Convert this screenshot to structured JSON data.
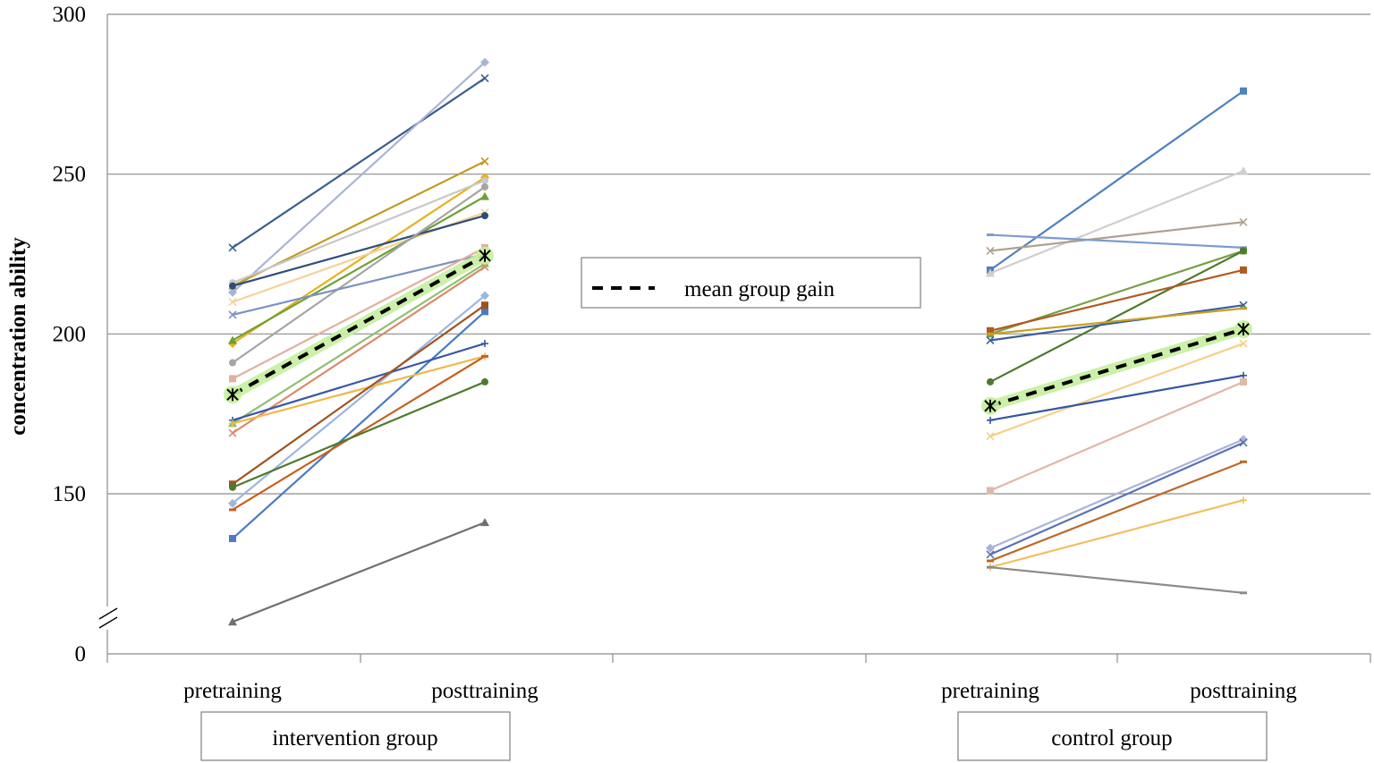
{
  "chart_data": {
    "type": "line",
    "title": "",
    "xlabel": "",
    "ylabel": "concentration ability",
    "ylim": [
      0,
      300
    ],
    "y_axis_break": {
      "below": 150,
      "shown_tick": 0,
      "note": "broken axis between 0 and ~120"
    },
    "y_ticks": [
      "0",
      "150",
      "200",
      "250",
      "300"
    ],
    "grid": true,
    "legend": {
      "position": "center-top",
      "entries": [
        "mean group gain"
      ]
    },
    "categories": [
      "pretraining",
      "posttraining",
      "pretraining",
      "posttraining"
    ],
    "groups": [
      {
        "label": "intervention group",
        "mean": {
          "name": "mean group gain",
          "pre": 181,
          "post": 224.5
        },
        "series": [
          {
            "pre": 227,
            "post": 280,
            "color": "#3b5e8c",
            "marker": "x"
          },
          {
            "pre": 213,
            "post": 285,
            "color": "#aab4d6",
            "marker": "diamond"
          },
          {
            "pre": 215,
            "post": 254,
            "color": "#c49a22",
            "marker": "x"
          },
          {
            "pre": 197,
            "post": 249,
            "color": "#e8b020",
            "marker": "diamond"
          },
          {
            "pre": 216,
            "post": 248,
            "color": "#c8c8c8",
            "marker": "circle"
          },
          {
            "pre": 210,
            "post": 238,
            "color": "#f4d29a",
            "marker": "x"
          },
          {
            "pre": 198,
            "post": 243,
            "color": "#6ea035",
            "marker": "triangle"
          },
          {
            "pre": 215,
            "post": 237,
            "color": "#2e4d7a",
            "marker": "circle"
          },
          {
            "pre": 191,
            "post": 246,
            "color": "#a5a5a5",
            "marker": "circle"
          },
          {
            "pre": 206,
            "post": 225,
            "color": "#7a92c2",
            "marker": "x"
          },
          {
            "pre": 186,
            "post": 227,
            "color": "#e2b0a0",
            "marker": "square"
          },
          {
            "pre": 172,
            "post": 222,
            "color": "#8fc070",
            "marker": "triangle"
          },
          {
            "pre": 169,
            "post": 221,
            "color": "#d98a6a",
            "marker": "x"
          },
          {
            "pre": 147,
            "post": 212,
            "color": "#9db6e0",
            "marker": "diamond"
          },
          {
            "pre": 136,
            "post": 207,
            "color": "#4a7bc4",
            "marker": "square"
          },
          {
            "pre": 173,
            "post": 197,
            "color": "#3858a8",
            "marker": "plus"
          },
          {
            "pre": 172,
            "post": 193,
            "color": "#f0b848",
            "marker": "plus"
          },
          {
            "pre": 153,
            "post": 209,
            "color": "#a0521e",
            "marker": "square"
          },
          {
            "pre": 145,
            "post": 193,
            "color": "#c86020",
            "marker": "dash"
          },
          {
            "pre": 152,
            "post": 185,
            "color": "#4e7a2e",
            "marker": "circle"
          },
          {
            "pre": 110,
            "post": 141,
            "color": "#707070",
            "marker": "triangle"
          }
        ]
      },
      {
        "label": "control group",
        "mean": {
          "name": "mean group gain",
          "pre": 177.5,
          "post": 201.5
        },
        "series": [
          {
            "pre": 220,
            "post": 276,
            "color": "#4f81bd",
            "marker": "square"
          },
          {
            "pre": 219,
            "post": 251,
            "color": "#cfcfcf",
            "marker": "triangle"
          },
          {
            "pre": 226,
            "post": 235,
            "color": "#b0a090",
            "marker": "x"
          },
          {
            "pre": 231,
            "post": 227,
            "color": "#7a9cd0",
            "marker": "dash"
          },
          {
            "pre": 200,
            "post": 226,
            "color": "#77a044",
            "marker": "square"
          },
          {
            "pre": 185,
            "post": 226,
            "color": "#4e7a2e",
            "marker": "circle"
          },
          {
            "pre": 201,
            "post": 220,
            "color": "#b05a20",
            "marker": "square"
          },
          {
            "pre": 198,
            "post": 209,
            "color": "#3b5e9c",
            "marker": "x"
          },
          {
            "pre": 200,
            "post": 208,
            "color": "#c8a020",
            "marker": "dash"
          },
          {
            "pre": 168,
            "post": 197,
            "color": "#f5cf88",
            "marker": "x"
          },
          {
            "pre": 173,
            "post": 187,
            "color": "#3456a0",
            "marker": "plus"
          },
          {
            "pre": 151,
            "post": 185,
            "color": "#e0b8a8",
            "marker": "square"
          },
          {
            "pre": 133,
            "post": 167,
            "color": "#a8b4d8",
            "marker": "diamond"
          },
          {
            "pre": 131,
            "post": 166,
            "color": "#5a70b8",
            "marker": "x"
          },
          {
            "pre": 129,
            "post": 160,
            "color": "#c06828",
            "marker": "dash"
          },
          {
            "pre": 127,
            "post": 148,
            "color": "#f0c060",
            "marker": "plus"
          },
          {
            "pre": 127,
            "post": 119,
            "color": "#8a8a8a",
            "marker": "dash"
          }
        ]
      }
    ]
  }
}
